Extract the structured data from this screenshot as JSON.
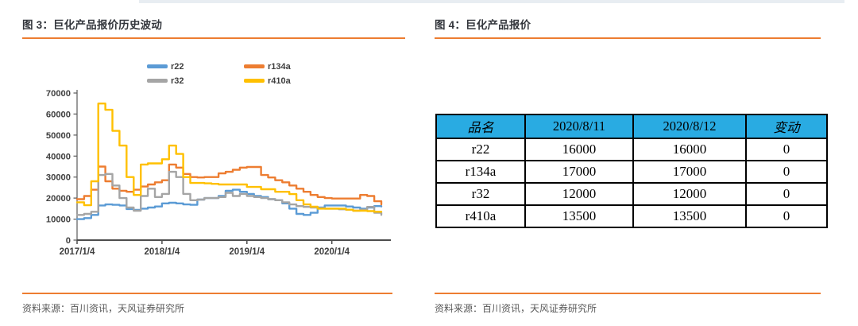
{
  "accent_orange": "#ED7D31",
  "top_strip_color": "#e8edf2",
  "left_panel": {
    "title": "图 3：巨化产品报价历史波动",
    "source": "资料来源：百川资讯，天风证券研究所"
  },
  "right_panel": {
    "title": "图 4：巨化产品报价",
    "source": "资料来源：百川资讯，天风证券研究所"
  },
  "chart_data": {
    "type": "line",
    "line_style": "step",
    "grid": false,
    "legend_position": "top",
    "ylim": [
      0,
      70000
    ],
    "yticks": [
      0,
      10000,
      20000,
      30000,
      40000,
      50000,
      60000,
      70000
    ],
    "x_tick_labels": [
      "2017/1/4",
      "2018/1/4",
      "2019/1/4",
      "2020/1/4"
    ],
    "x_tick_month_index": [
      0,
      12,
      24,
      36
    ],
    "months": [
      "2017/1",
      "2017/2",
      "2017/3",
      "2017/4",
      "2017/5",
      "2017/6",
      "2017/7",
      "2017/8",
      "2017/9",
      "2017/10",
      "2017/11",
      "2017/12",
      "2018/1",
      "2018/2",
      "2018/3",
      "2018/4",
      "2018/5",
      "2018/6",
      "2018/7",
      "2018/8",
      "2018/9",
      "2018/10",
      "2018/11",
      "2018/12",
      "2019/1",
      "2019/2",
      "2019/3",
      "2019/4",
      "2019/5",
      "2019/6",
      "2019/7",
      "2019/8",
      "2019/9",
      "2019/10",
      "2019/11",
      "2019/12",
      "2020/1",
      "2020/2",
      "2020/3",
      "2020/4",
      "2020/5",
      "2020/6",
      "2020/7",
      "2020/8"
    ],
    "series": [
      {
        "name": "r22",
        "color": "#5B9BD5",
        "values": [
          10000,
          10500,
          12000,
          16500,
          17000,
          16800,
          16500,
          14800,
          14400,
          15000,
          15500,
          16000,
          17500,
          17800,
          17500,
          17000,
          16800,
          19300,
          20000,
          20000,
          21000,
          23500,
          24000,
          23000,
          22000,
          21000,
          20500,
          19500,
          19000,
          17500,
          15000,
          12500,
          12000,
          13000,
          15500,
          16500,
          16500,
          16500,
          16000,
          15500,
          15000,
          15500,
          16200,
          16000
        ]
      },
      {
        "name": "r134a",
        "color": "#ED7D31",
        "values": [
          19500,
          21000,
          24000,
          35000,
          28000,
          24500,
          23500,
          23000,
          24000,
          25500,
          26500,
          27500,
          28500,
          36000,
          34500,
          31500,
          30000,
          29800,
          30000,
          30000,
          31800,
          32500,
          33500,
          34500,
          34800,
          34800,
          31000,
          29800,
          28500,
          27500,
          26000,
          24500,
          23000,
          21500,
          20500,
          20000,
          19800,
          19800,
          19800,
          19800,
          21500,
          21000,
          18500,
          17000
        ]
      },
      {
        "name": "r32",
        "color": "#A5A5A5",
        "values": [
          12000,
          12500,
          13500,
          31000,
          31500,
          26000,
          20000,
          15500,
          14000,
          21000,
          24500,
          20500,
          22000,
          32500,
          30000,
          22000,
          19000,
          19300,
          20000,
          20000,
          20500,
          22500,
          21000,
          22000,
          21000,
          20500,
          20000,
          19500,
          19000,
          18000,
          17000,
          16200,
          15800,
          15500,
          15200,
          15000,
          15000,
          14700,
          14500,
          14000,
          14500,
          15800,
          13000,
          12000
        ]
      },
      {
        "name": "r410a",
        "color": "#FFC000",
        "values": [
          18000,
          16600,
          28000,
          65000,
          62000,
          52000,
          45000,
          30000,
          21500,
          36000,
          36500,
          36500,
          38500,
          45000,
          41000,
          30000,
          27200,
          27200,
          27000,
          26800,
          26500,
          26500,
          26500,
          26500,
          25300,
          25300,
          24200,
          24200,
          23000,
          23000,
          21900,
          19000,
          17000,
          15900,
          15000,
          15000,
          15000,
          15000,
          14500,
          14000,
          14000,
          13800,
          13500,
          13500
        ]
      }
    ],
    "legend_display_order": [
      "r22",
      "r134a",
      "r32",
      "r410a"
    ]
  },
  "table": {
    "header_bg": "#29ABE2",
    "headers": [
      "品名",
      "2020/8/11",
      "2020/8/12",
      "变动"
    ],
    "rows": [
      [
        "r22",
        "16000",
        "16000",
        "0"
      ],
      [
        "r134a",
        "17000",
        "17000",
        "0"
      ],
      [
        "r32",
        "12000",
        "12000",
        "0"
      ],
      [
        "r410a",
        "13500",
        "13500",
        "0"
      ]
    ]
  }
}
